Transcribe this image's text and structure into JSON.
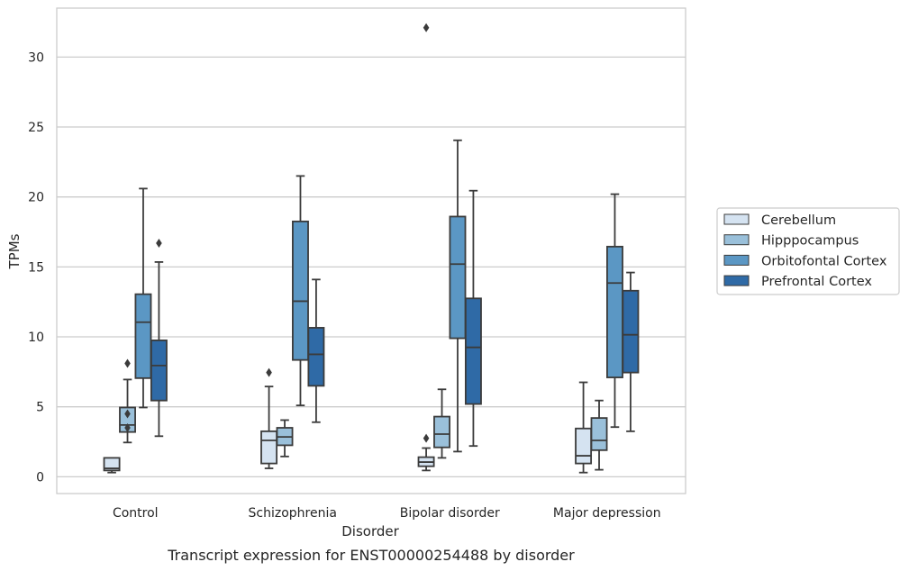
{
  "caption": "Transcript expression for ENST00000254488 by disorder",
  "chart_data": {
    "type": "box",
    "xlabel": "Disorder",
    "ylabel": "TPMs",
    "ylim": [
      -1.2,
      33.5
    ],
    "yticks": [
      0,
      5,
      10,
      15,
      20,
      25,
      30
    ],
    "grid": "horizontal",
    "legend_position": "right",
    "categories": [
      "Control",
      "Schizophrenia",
      "Bipolar disorder",
      "Major depression"
    ],
    "series": [
      {
        "name": "Cerebellum",
        "color": "#d5e3f1",
        "boxes": [
          {
            "whislo": 0.3,
            "q1": 0.45,
            "med": 0.6,
            "q3": 1.35,
            "whishi": 1.35,
            "fliers": []
          },
          {
            "whislo": 0.6,
            "q1": 0.95,
            "med": 2.6,
            "q3": 3.25,
            "whishi": 6.45,
            "fliers": [
              7.45
            ]
          },
          {
            "whislo": 0.45,
            "q1": 0.75,
            "med": 1.05,
            "q3": 1.4,
            "whishi": 2.05,
            "fliers": [
              2.75,
              32.1
            ]
          },
          {
            "whislo": 0.3,
            "q1": 0.95,
            "med": 1.5,
            "q3": 3.45,
            "whishi": 6.75,
            "fliers": []
          }
        ]
      },
      {
        "name": "Hipppocampus",
        "color": "#9ac0da",
        "boxes": [
          {
            "whislo": 2.45,
            "q1": 3.2,
            "med": 3.7,
            "q3": 4.95,
            "whishi": 6.95,
            "fliers": [
              8.1,
              4.5,
              3.5
            ]
          },
          {
            "whislo": 1.45,
            "q1": 2.25,
            "med": 2.85,
            "q3": 3.5,
            "whishi": 4.05,
            "fliers": []
          },
          {
            "whislo": 1.35,
            "q1": 2.1,
            "med": 3.05,
            "q3": 4.3,
            "whishi": 6.25,
            "fliers": []
          },
          {
            "whislo": 0.5,
            "q1": 1.9,
            "med": 2.6,
            "q3": 4.2,
            "whishi": 5.45,
            "fliers": []
          }
        ]
      },
      {
        "name": "Orbitofontal Cortex",
        "color": "#5b97c4",
        "boxes": [
          {
            "whislo": 4.95,
            "q1": 7.05,
            "med": 11.05,
            "q3": 13.05,
            "whishi": 20.6,
            "fliers": []
          },
          {
            "whislo": 5.1,
            "q1": 8.35,
            "med": 12.55,
            "q3": 18.25,
            "whishi": 21.5,
            "fliers": []
          },
          {
            "whislo": 1.8,
            "q1": 9.9,
            "med": 15.2,
            "q3": 18.6,
            "whishi": 24.05,
            "fliers": []
          },
          {
            "whislo": 3.55,
            "q1": 7.1,
            "med": 13.85,
            "q3": 16.45,
            "whishi": 20.2,
            "fliers": []
          }
        ]
      },
      {
        "name": "Prefrontal Cortex",
        "color": "#2f6aa6",
        "boxes": [
          {
            "whislo": 2.9,
            "q1": 5.45,
            "med": 7.95,
            "q3": 9.75,
            "whishi": 15.35,
            "fliers": [
              16.7
            ]
          },
          {
            "whislo": 3.9,
            "q1": 6.5,
            "med": 8.75,
            "q3": 10.65,
            "whishi": 14.1,
            "fliers": []
          },
          {
            "whislo": 2.2,
            "q1": 5.2,
            "med": 9.25,
            "q3": 12.75,
            "whishi": 20.45,
            "fliers": []
          },
          {
            "whislo": 3.25,
            "q1": 7.45,
            "med": 10.15,
            "q3": 13.3,
            "whishi": 14.6,
            "fliers": []
          }
        ]
      }
    ]
  }
}
